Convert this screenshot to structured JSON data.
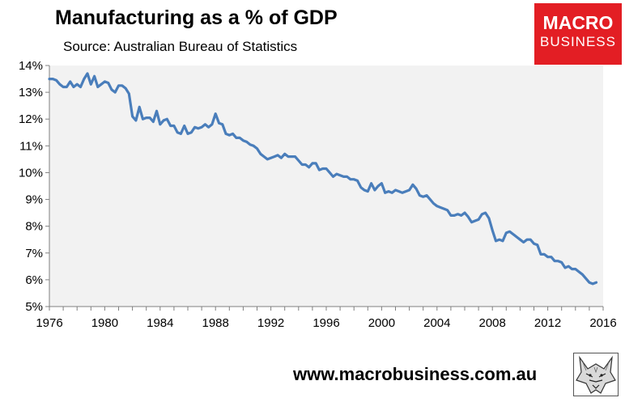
{
  "header": {
    "title": "Manufacturing as a % of GDP",
    "subtitle": "Source: Australian Bureau of Statistics"
  },
  "logo": {
    "line1": "MACRO",
    "line2": "BUSINESS",
    "color": "#e31e24"
  },
  "footer": {
    "website": "www.macrobusiness.com.au",
    "icon": "wolf-icon"
  },
  "chart_data": {
    "type": "line",
    "title": "Manufacturing as a % of GDP",
    "subtitle": "Source: Australian Bureau of Statistics",
    "xlabel": "",
    "ylabel": "",
    "xlim": [
      1976,
      2016
    ],
    "ylim": [
      5,
      14
    ],
    "x_ticks": [
      1976,
      1980,
      1984,
      1988,
      1992,
      1996,
      2000,
      2004,
      2008,
      2012,
      2016
    ],
    "x_tick_labels": [
      "1976",
      "1980",
      "1984",
      "1988",
      "1992",
      "1996",
      "2000",
      "2004",
      "2008",
      "2012",
      "2016"
    ],
    "y_ticks": [
      5,
      6,
      7,
      8,
      9,
      10,
      11,
      12,
      13,
      14
    ],
    "y_tick_labels": [
      "5%",
      "6%",
      "7%",
      "8%",
      "9%",
      "10%",
      "11%",
      "12%",
      "13%",
      "14%"
    ],
    "grid": false,
    "legend": "none",
    "plot_background": "#f2f2f2",
    "line_color": "#4a7ebb",
    "series": [
      {
        "x": [
          1976.0,
          1976.25,
          1976.5,
          1976.75,
          1977.0,
          1977.25,
          1977.5,
          1977.75,
          1978.0,
          1978.25,
          1978.5,
          1978.75,
          1979.0,
          1979.25,
          1979.5,
          1979.75,
          1980.0,
          1980.25,
          1980.5,
          1980.75,
          1981.0,
          1981.25,
          1981.5,
          1981.75,
          1982.0,
          1982.25,
          1982.5,
          1982.75,
          1983.0,
          1983.25,
          1983.5,
          1983.75,
          1984.0,
          1984.25,
          1984.5,
          1984.75,
          1985.0,
          1985.25,
          1985.5,
          1985.75,
          1986.0,
          1986.25,
          1986.5,
          1986.75,
          1987.0,
          1987.25,
          1987.5,
          1987.75,
          1988.0,
          1988.25,
          1988.5,
          1988.75,
          1989.0,
          1989.25,
          1989.5,
          1989.75,
          1990.0,
          1990.25,
          1990.5,
          1990.75,
          1991.0,
          1991.25,
          1991.5,
          1991.75,
          1992.0,
          1992.25,
          1992.5,
          1992.75,
          1993.0,
          1993.25,
          1993.5,
          1993.75,
          1994.0,
          1994.25,
          1994.5,
          1994.75,
          1995.0,
          1995.25,
          1995.5,
          1995.75,
          1996.0,
          1996.25,
          1996.5,
          1996.75,
          1997.0,
          1997.25,
          1997.5,
          1997.75,
          1998.0,
          1998.25,
          1998.5,
          1998.75,
          1999.0,
          1999.25,
          1999.5,
          1999.75,
          2000.0,
          2000.25,
          2000.5,
          2000.75,
          2001.0,
          2001.25,
          2001.5,
          2001.75,
          2002.0,
          2002.25,
          2002.5,
          2002.75,
          2003.0,
          2003.25,
          2003.5,
          2003.75,
          2004.0,
          2004.25,
          2004.5,
          2004.75,
          2005.0,
          2005.25,
          2005.5,
          2005.75,
          2006.0,
          2006.25,
          2006.5,
          2006.75,
          2007.0,
          2007.25,
          2007.5,
          2007.75,
          2008.0,
          2008.25,
          2008.5,
          2008.75,
          2009.0,
          2009.25,
          2009.5,
          2009.75,
          2010.0,
          2010.25,
          2010.5,
          2010.75,
          2011.0,
          2011.25,
          2011.5,
          2011.75,
          2012.0,
          2012.25,
          2012.5,
          2012.75,
          2013.0,
          2013.25,
          2013.5,
          2013.75,
          2014.0,
          2014.25,
          2014.5,
          2014.75,
          2015.0,
          2015.25,
          2015.5
        ],
        "y": [
          13.5,
          13.5,
          13.45,
          13.3,
          13.2,
          13.2,
          13.4,
          13.2,
          13.3,
          13.2,
          13.5,
          13.7,
          13.3,
          13.6,
          13.2,
          13.3,
          13.4,
          13.35,
          13.1,
          13.0,
          13.25,
          13.25,
          13.15,
          12.95,
          12.1,
          11.95,
          12.45,
          12.0,
          12.05,
          12.05,
          11.9,
          12.3,
          11.8,
          11.95,
          12.0,
          11.75,
          11.75,
          11.5,
          11.45,
          11.75,
          11.45,
          11.5,
          11.7,
          11.65,
          11.7,
          11.8,
          11.7,
          11.8,
          12.2,
          11.85,
          11.8,
          11.45,
          11.4,
          11.45,
          11.3,
          11.3,
          11.2,
          11.15,
          11.05,
          11.0,
          10.9,
          10.7,
          10.6,
          10.5,
          10.55,
          10.6,
          10.65,
          10.55,
          10.7,
          10.6,
          10.6,
          10.6,
          10.45,
          10.3,
          10.3,
          10.2,
          10.35,
          10.35,
          10.1,
          10.15,
          10.15,
          10.0,
          9.85,
          9.95,
          9.9,
          9.85,
          9.85,
          9.75,
          9.75,
          9.7,
          9.45,
          9.35,
          9.3,
          9.6,
          9.35,
          9.5,
          9.6,
          9.25,
          9.3,
          9.25,
          9.35,
          9.3,
          9.25,
          9.3,
          9.35,
          9.55,
          9.4,
          9.15,
          9.1,
          9.15,
          9.0,
          8.85,
          8.75,
          8.7,
          8.65,
          8.6,
          8.4,
          8.4,
          8.45,
          8.4,
          8.5,
          8.35,
          8.15,
          8.2,
          8.25,
          8.45,
          8.5,
          8.3,
          7.85,
          7.45,
          7.5,
          7.45,
          7.75,
          7.8,
          7.7,
          7.6,
          7.5,
          7.4,
          7.5,
          7.5,
          7.35,
          7.3,
          6.95,
          6.95,
          6.85,
          6.85,
          6.7,
          6.7,
          6.65,
          6.45,
          6.5,
          6.4,
          6.4,
          6.3,
          6.2,
          6.05,
          5.9,
          5.85,
          5.9
        ]
      }
    ]
  }
}
